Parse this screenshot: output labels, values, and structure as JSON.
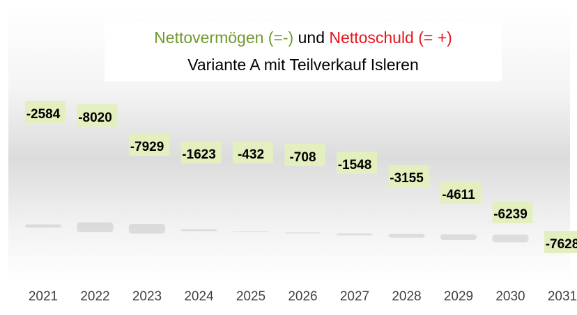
{
  "chart_data": {
    "type": "bar",
    "title_parts": [
      "Nettovermögen (=-)",
      "und",
      "Nettoschuld (= +)"
    ],
    "title_colors": [
      "#6f9a2e",
      "#000000",
      "#e8141c"
    ],
    "subtitle": "Variante A mit Teilverkauf Isleren",
    "categories": [
      "2021",
      "2022",
      "2023",
      "2024",
      "2025",
      "2026",
      "2027",
      "2028",
      "2029",
      "2030",
      "2031"
    ],
    "values": [
      -2584,
      -8020,
      -7929,
      -1623,
      -432,
      -708,
      -1548,
      -3155,
      -4611,
      -6239,
      -7628
    ],
    "color": "#e4efbf"
  }
}
